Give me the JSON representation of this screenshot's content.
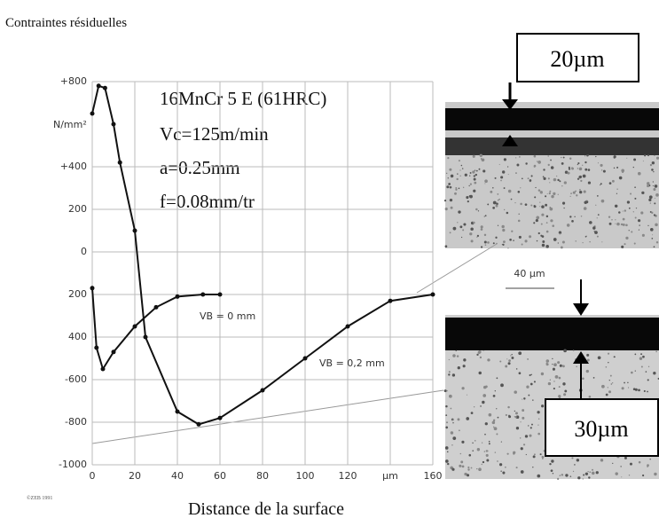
{
  "chart_data": {
    "type": "line",
    "title": "Contraintes résiduelles",
    "x_label": "Distance de la surface",
    "y_unit": "N/mm²",
    "credit": "©ZEB 1991",
    "annotations": [
      "16MnCr 5 E (61HRC)",
      "Vc=125m/min",
      "a=0.25mm",
      "f=0.08mm/tr"
    ],
    "micrograph_labels": [
      "20µm",
      "40 µm",
      "30µm"
    ],
    "xlim": [
      0,
      160
    ],
    "xticks": [
      0,
      20,
      40,
      60,
      80,
      100,
      120,
      {
        "value": 140,
        "label": "µm"
      },
      160
    ],
    "ylim": [
      -1000,
      800
    ],
    "yticks": [
      {
        "value": 800,
        "label": "+800"
      },
      {
        "value": 400,
        "label": "+400"
      },
      200,
      0,
      {
        "value": -200,
        "label": "200"
      },
      {
        "value": -400,
        "label": "400"
      },
      -600,
      -800,
      -1000
    ],
    "grid": true,
    "series": [
      {
        "name": "VB = 0,2 mm",
        "color": "#111111",
        "x": [
          0,
          3,
          6,
          10,
          13,
          20,
          25,
          40,
          50,
          60,
          80,
          100,
          120,
          140,
          160
        ],
        "values": [
          650,
          780,
          770,
          600,
          420,
          100,
          -400,
          -750,
          -810,
          -780,
          -650,
          -500,
          -350,
          -230,
          -200
        ]
      },
      {
        "name": "VB = 0 mm",
        "color": "#111111",
        "x": [
          0,
          2,
          5,
          10,
          20,
          30,
          40,
          52,
          60
        ],
        "values": [
          -170,
          -450,
          -550,
          -470,
          -350,
          -260,
          -210,
          -200,
          -200
        ]
      }
    ]
  }
}
